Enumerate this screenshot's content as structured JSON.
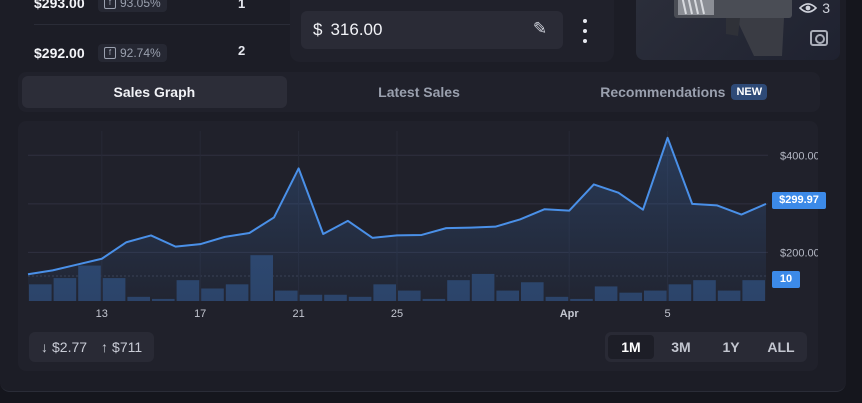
{
  "listings": [
    {
      "price": "$293.00",
      "float": "93.05%",
      "qty": "1"
    },
    {
      "price": "$292.00",
      "float": "92.74%",
      "qty": "2"
    }
  ],
  "price_input": {
    "currency": "$",
    "value": "316.00"
  },
  "item": {
    "views": "3"
  },
  "tabs": [
    {
      "label": "Sales Graph",
      "active": true
    },
    {
      "label": "Latest Sales",
      "active": false
    },
    {
      "label": "Recommendations",
      "badge": "NEW",
      "active": false
    }
  ],
  "chart": {
    "price_tag": "$299.97",
    "volume_tag": "10",
    "min_label": "$2.77",
    "max_label": "$711",
    "ranges": [
      "1M",
      "3M",
      "1Y",
      "ALL"
    ],
    "active_range": "1M"
  },
  "colors": {
    "accent": "#3c8ae8",
    "line": "#4a90e8",
    "bar": "#2b4266"
  },
  "chart_data": {
    "type": "line",
    "y_ticks": [
      "$400.00",
      "$200.00"
    ],
    "y_range": [
      100,
      450
    ],
    "x_ticks": [
      {
        "i": 3,
        "label": "13"
      },
      {
        "i": 7,
        "label": "17"
      },
      {
        "i": 11,
        "label": "21"
      },
      {
        "i": 15,
        "label": "25"
      },
      {
        "i": 22,
        "label": "Apr"
      },
      {
        "i": 26,
        "label": "5"
      }
    ],
    "price": [
      155,
      163,
      175,
      187,
      221,
      235,
      212,
      217,
      232,
      240,
      272,
      373,
      238,
      265,
      230,
      235,
      236,
      250,
      251,
      253,
      268,
      289,
      286,
      340,
      323,
      288,
      436,
      300,
      297,
      278,
      299.97
    ],
    "volume": [
      8,
      11,
      17,
      11,
      2,
      1,
      10,
      6,
      8,
      22,
      5,
      3,
      3,
      2,
      8,
      5,
      1,
      10,
      13,
      5,
      9,
      2,
      1,
      7,
      4,
      5,
      8,
      10,
      5,
      10
    ]
  }
}
